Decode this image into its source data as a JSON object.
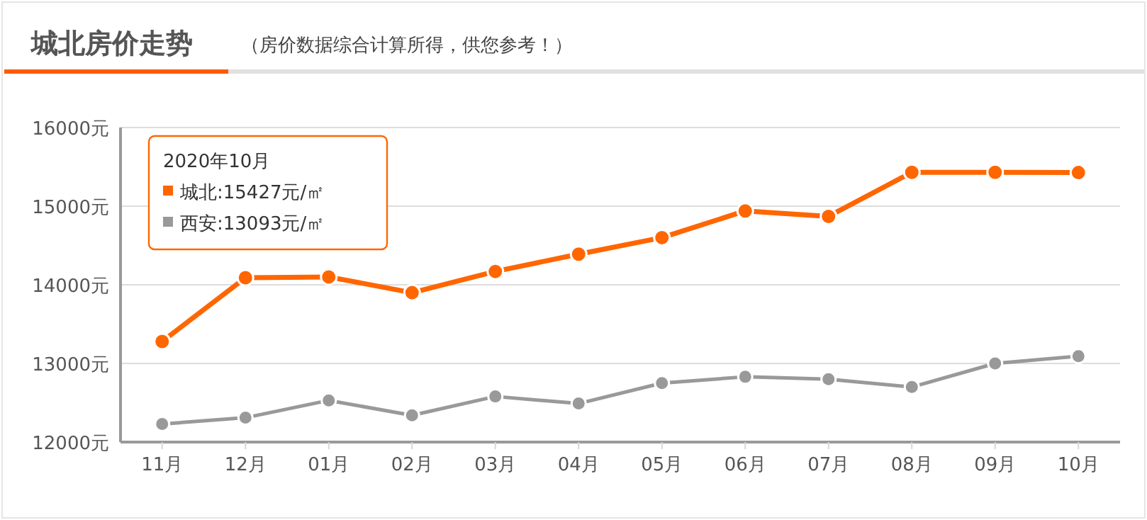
{
  "chart_data": {
    "type": "line",
    "title": "城北房价走势",
    "subtitle": "（房价数据综合计算所得，供您参考！）",
    "categories": [
      "11月",
      "12月",
      "01月",
      "02月",
      "03月",
      "04月",
      "05月",
      "06月",
      "07月",
      "08月",
      "09月",
      "10月"
    ],
    "series": [
      {
        "color": "#ff6600",
        "values": [
          13280,
          14090,
          14100,
          13900,
          14170,
          14390,
          14600,
          14940,
          14870,
          15430,
          15430,
          15427
        ]
      },
      {
        "color": "#999999",
        "values": [
          12230,
          12310,
          12530,
          12340,
          12580,
          12490,
          12750,
          12830,
          12800,
          12700,
          13000,
          13093
        ]
      }
    ],
    "ylim": [
      12000,
      16000
    ],
    "yticks": [
      {
        "value": 12000,
        "label": "12000元"
      },
      {
        "value": 13000,
        "label": "13000元"
      },
      {
        "value": 14000,
        "label": "14000元"
      },
      {
        "value": 15000,
        "label": "15000元"
      },
      {
        "value": 16000,
        "label": "16000元"
      }
    ],
    "grid": "y",
    "marker": "circle",
    "line_style": "solid",
    "annotations": [
      "2020年10月",
      "城北:15427元/㎡",
      "西安:13093元/㎡"
    ]
  }
}
